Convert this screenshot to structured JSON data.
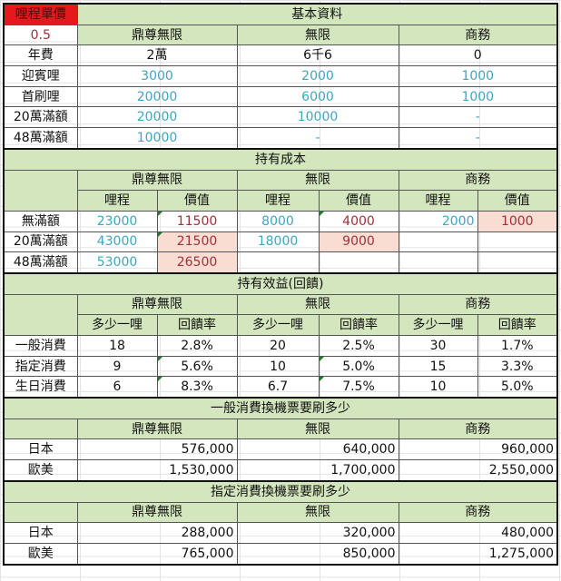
{
  "unit_price": {
    "label": "哩程單價",
    "value": "0.5"
  },
  "cards": [
    "鼎尊無限",
    "無限",
    "商務"
  ],
  "basic": {
    "title": "基本資料",
    "rows": [
      {
        "label": "年費",
        "values": [
          "2萬",
          "6千6",
          "0"
        ]
      },
      {
        "label": "迎賓哩",
        "values": [
          "3000",
          "2000",
          "1000"
        ]
      },
      {
        "label": "首刷哩",
        "values": [
          "20000",
          "6000",
          "1000"
        ]
      },
      {
        "label": "20萬滿額",
        "values": [
          "20000",
          "10000",
          "-"
        ]
      },
      {
        "label": "48萬滿額",
        "values": [
          "10000",
          "-",
          "-"
        ]
      }
    ]
  },
  "holding_cost": {
    "title": "持有成本",
    "sub_headers": [
      "哩程",
      "價值"
    ],
    "rows": [
      {
        "label": "無滿額",
        "values": [
          "23000",
          "11500",
          "8000",
          "4000",
          "2000",
          "1000"
        ]
      },
      {
        "label": "20萬滿額",
        "values": [
          "43000",
          "21500",
          "18000",
          "9000",
          "",
          ""
        ]
      },
      {
        "label": "48萬滿額",
        "values": [
          "53000",
          "26500",
          "",
          "",
          "",
          ""
        ]
      }
    ]
  },
  "benefit": {
    "title": "持有效益(回饋)",
    "sub_headers": [
      "多少一哩",
      "回饋率"
    ],
    "rows": [
      {
        "label": "一般消費",
        "values": [
          "18",
          "2.8%",
          "20",
          "2.5%",
          "30",
          "1.7%"
        ]
      },
      {
        "label": "指定消費",
        "values": [
          "9",
          "5.6%",
          "10",
          "5.0%",
          "15",
          "3.3%"
        ]
      },
      {
        "label": "生日消費",
        "values": [
          "6",
          "8.3%",
          "6.7",
          "7.5%",
          "10",
          "5.0%"
        ]
      }
    ]
  },
  "general_ticket": {
    "title": "一般消費換機票要刷多少",
    "rows": [
      {
        "label": "日本",
        "values": [
          "576,000",
          "640,000",
          "960,000"
        ]
      },
      {
        "label": "歐美",
        "values": [
          "1,530,000",
          "1,700,000",
          "2,550,000"
        ]
      }
    ]
  },
  "designated_ticket": {
    "title": "指定消費換機票要刷多少",
    "rows": [
      {
        "label": "日本",
        "values": [
          "288,000",
          "320,000",
          "480,000"
        ]
      },
      {
        "label": "歐美",
        "values": [
          "765,000",
          "850,000",
          "1,275,000"
        ]
      }
    ]
  },
  "colors": {
    "header_green": "#d4e6bd",
    "unit_price_red": "#e5191c",
    "mileage_blue": "#3ea6bf",
    "value_pink": "#f9ddd2"
  }
}
